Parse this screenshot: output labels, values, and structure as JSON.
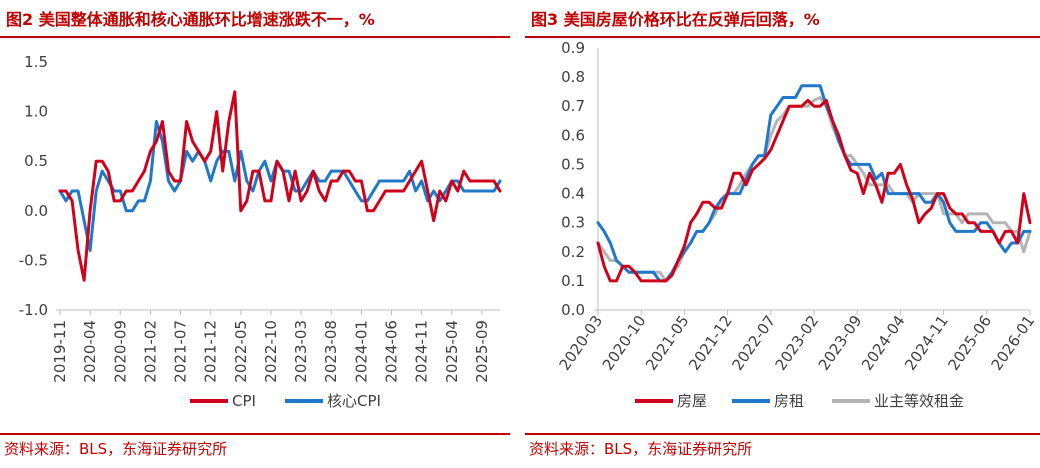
{
  "chart_data": [
    {
      "type": "line",
      "title": "图2  美国整体通胀和核心通胀环比增速涨跌不一，%",
      "source": "资料来源：BLS，东海证券研究所",
      "ylim": [
        -1.0,
        1.5
      ],
      "yticks": [
        "1.5",
        "1.0",
        "0.5",
        "0.0",
        "-0.5",
        "-1.0"
      ],
      "ytick_values": [
        1.5,
        1.0,
        0.5,
        0.0,
        -0.5,
        -1.0
      ],
      "xtick_labels": [
        "2019-11",
        "2020-04",
        "2020-09",
        "2021-02",
        "2021-07",
        "2021-12",
        "2022-05",
        "2022-10",
        "2023-03",
        "2023-08",
        "2024-01",
        "2024-06",
        "2024-11",
        "2025-04",
        "2025-09"
      ],
      "xtick_step": 5,
      "n_points": 74,
      "legend_position": "bottom",
      "colors": [
        "#d0021b",
        "#1f78c8"
      ],
      "series": [
        {
          "name": "CPI",
          "values": [
            0.2,
            0.2,
            0.1,
            -0.4,
            -0.7,
            0.0,
            0.5,
            0.5,
            0.4,
            0.1,
            0.1,
            0.2,
            0.2,
            0.3,
            0.4,
            0.6,
            0.7,
            0.9,
            0.4,
            0.3,
            0.3,
            0.9,
            0.7,
            0.6,
            0.5,
            0.6,
            1.0,
            0.4,
            0.9,
            1.2,
            0.0,
            0.1,
            0.4,
            0.4,
            0.1,
            0.1,
            0.5,
            0.4,
            0.1,
            0.4,
            0.1,
            0.2,
            0.4,
            0.2,
            0.1,
            0.3,
            0.3,
            0.4,
            0.4,
            0.3,
            0.3,
            0.0,
            0.0,
            0.1,
            0.2,
            0.2,
            0.2,
            0.2,
            0.3,
            0.4,
            0.5,
            0.2,
            -0.1,
            0.2,
            0.1,
            0.3,
            0.2,
            0.4,
            0.3,
            0.3,
            0.3,
            0.3,
            0.3,
            0.2
          ]
        },
        {
          "name": "核心CPI",
          "values": [
            0.2,
            0.1,
            0.2,
            0.2,
            -0.1,
            -0.4,
            0.2,
            0.4,
            0.3,
            0.2,
            0.2,
            0.0,
            0.0,
            0.1,
            0.1,
            0.3,
            0.9,
            0.7,
            0.3,
            0.2,
            0.3,
            0.6,
            0.5,
            0.6,
            0.5,
            0.3,
            0.5,
            0.6,
            0.6,
            0.3,
            0.6,
            0.3,
            0.2,
            0.4,
            0.5,
            0.3,
            0.5,
            0.4,
            0.4,
            0.2,
            0.2,
            0.3,
            0.4,
            0.3,
            0.3,
            0.4,
            0.4,
            0.4,
            0.3,
            0.2,
            0.1,
            0.1,
            0.2,
            0.3,
            0.3,
            0.3,
            0.3,
            0.3,
            0.4,
            0.2,
            0.3,
            0.1,
            0.2,
            0.1,
            0.2,
            0.3,
            0.3,
            0.2,
            0.2,
            0.2,
            0.2,
            0.2,
            0.2,
            0.3
          ]
        }
      ]
    },
    {
      "type": "line",
      "title": "图3  美国房屋价格环比在反弹后回落，%",
      "source": "资料来源：BLS，东海证券研究所",
      "ylim": [
        0.0,
        0.9
      ],
      "yticks": [
        "0.9",
        "0.8",
        "0.7",
        "0.6",
        "0.5",
        "0.4",
        "0.3",
        "0.2",
        "0.1",
        "0.0"
      ],
      "ytick_values": [
        0.9,
        0.8,
        0.7,
        0.6,
        0.5,
        0.4,
        0.3,
        0.2,
        0.1,
        0.0
      ],
      "xtick_labels": [
        "2020-03",
        "2020-10",
        "2021-05",
        "2021-12",
        "2022-07",
        "2023-02",
        "2023-09",
        "2024-04",
        "2024-11",
        "2025-06",
        "2026-01"
      ],
      "xtick_step": 7,
      "n_points": 71,
      "legend_position": "bottom",
      "colors": [
        "#d0021b",
        "#1f78c8",
        "#b4b4b4"
      ],
      "series": [
        {
          "name": "房屋",
          "values": [
            0.23,
            0.15,
            0.1,
            0.1,
            0.15,
            0.15,
            0.13,
            0.1,
            0.1,
            0.1,
            0.1,
            0.1,
            0.12,
            0.17,
            0.22,
            0.3,
            0.33,
            0.37,
            0.37,
            0.35,
            0.35,
            0.4,
            0.47,
            0.47,
            0.43,
            0.48,
            0.5,
            0.52,
            0.55,
            0.6,
            0.65,
            0.7,
            0.7,
            0.7,
            0.72,
            0.7,
            0.7,
            0.72,
            0.65,
            0.6,
            0.53,
            0.48,
            0.47,
            0.4,
            0.47,
            0.43,
            0.37,
            0.47,
            0.47,
            0.5,
            0.43,
            0.38,
            0.3,
            0.33,
            0.35,
            0.4,
            0.4,
            0.35,
            0.33,
            0.33,
            0.3,
            0.3,
            0.27,
            0.27,
            0.27,
            0.23,
            0.27,
            0.27,
            0.23,
            0.4,
            0.3
          ]
        },
        {
          "name": "房租",
          "values": [
            0.3,
            0.27,
            0.23,
            0.17,
            0.15,
            0.13,
            0.13,
            0.13,
            0.13,
            0.13,
            0.1,
            0.1,
            0.13,
            0.17,
            0.2,
            0.23,
            0.27,
            0.27,
            0.3,
            0.35,
            0.38,
            0.4,
            0.4,
            0.4,
            0.45,
            0.5,
            0.53,
            0.53,
            0.67,
            0.7,
            0.73,
            0.73,
            0.73,
            0.77,
            0.77,
            0.77,
            0.77,
            0.7,
            0.65,
            0.58,
            0.53,
            0.5,
            0.5,
            0.5,
            0.5,
            0.45,
            0.47,
            0.4,
            0.4,
            0.4,
            0.4,
            0.4,
            0.4,
            0.37,
            0.37,
            0.4,
            0.37,
            0.3,
            0.27,
            0.27,
            0.27,
            0.27,
            0.3,
            0.3,
            0.27,
            0.23,
            0.2,
            0.23,
            0.23,
            0.27,
            0.27
          ]
        },
        {
          "name": "业主等效租金",
          "values": [
            0.23,
            0.2,
            0.17,
            0.17,
            0.15,
            0.13,
            0.13,
            0.13,
            0.13,
            0.13,
            0.13,
            0.1,
            0.13,
            0.15,
            0.2,
            0.23,
            0.27,
            0.27,
            0.3,
            0.33,
            0.38,
            0.4,
            0.4,
            0.43,
            0.47,
            0.5,
            0.53,
            0.53,
            0.6,
            0.65,
            0.67,
            0.7,
            0.7,
            0.7,
            0.7,
            0.72,
            0.73,
            0.7,
            0.63,
            0.58,
            0.53,
            0.53,
            0.5,
            0.47,
            0.43,
            0.43,
            0.43,
            0.43,
            0.4,
            0.4,
            0.4,
            0.37,
            0.4,
            0.4,
            0.4,
            0.4,
            0.33,
            0.33,
            0.33,
            0.3,
            0.33,
            0.33,
            0.33,
            0.33,
            0.3,
            0.3,
            0.3,
            0.27,
            0.27,
            0.2,
            0.27
          ]
        }
      ]
    }
  ]
}
